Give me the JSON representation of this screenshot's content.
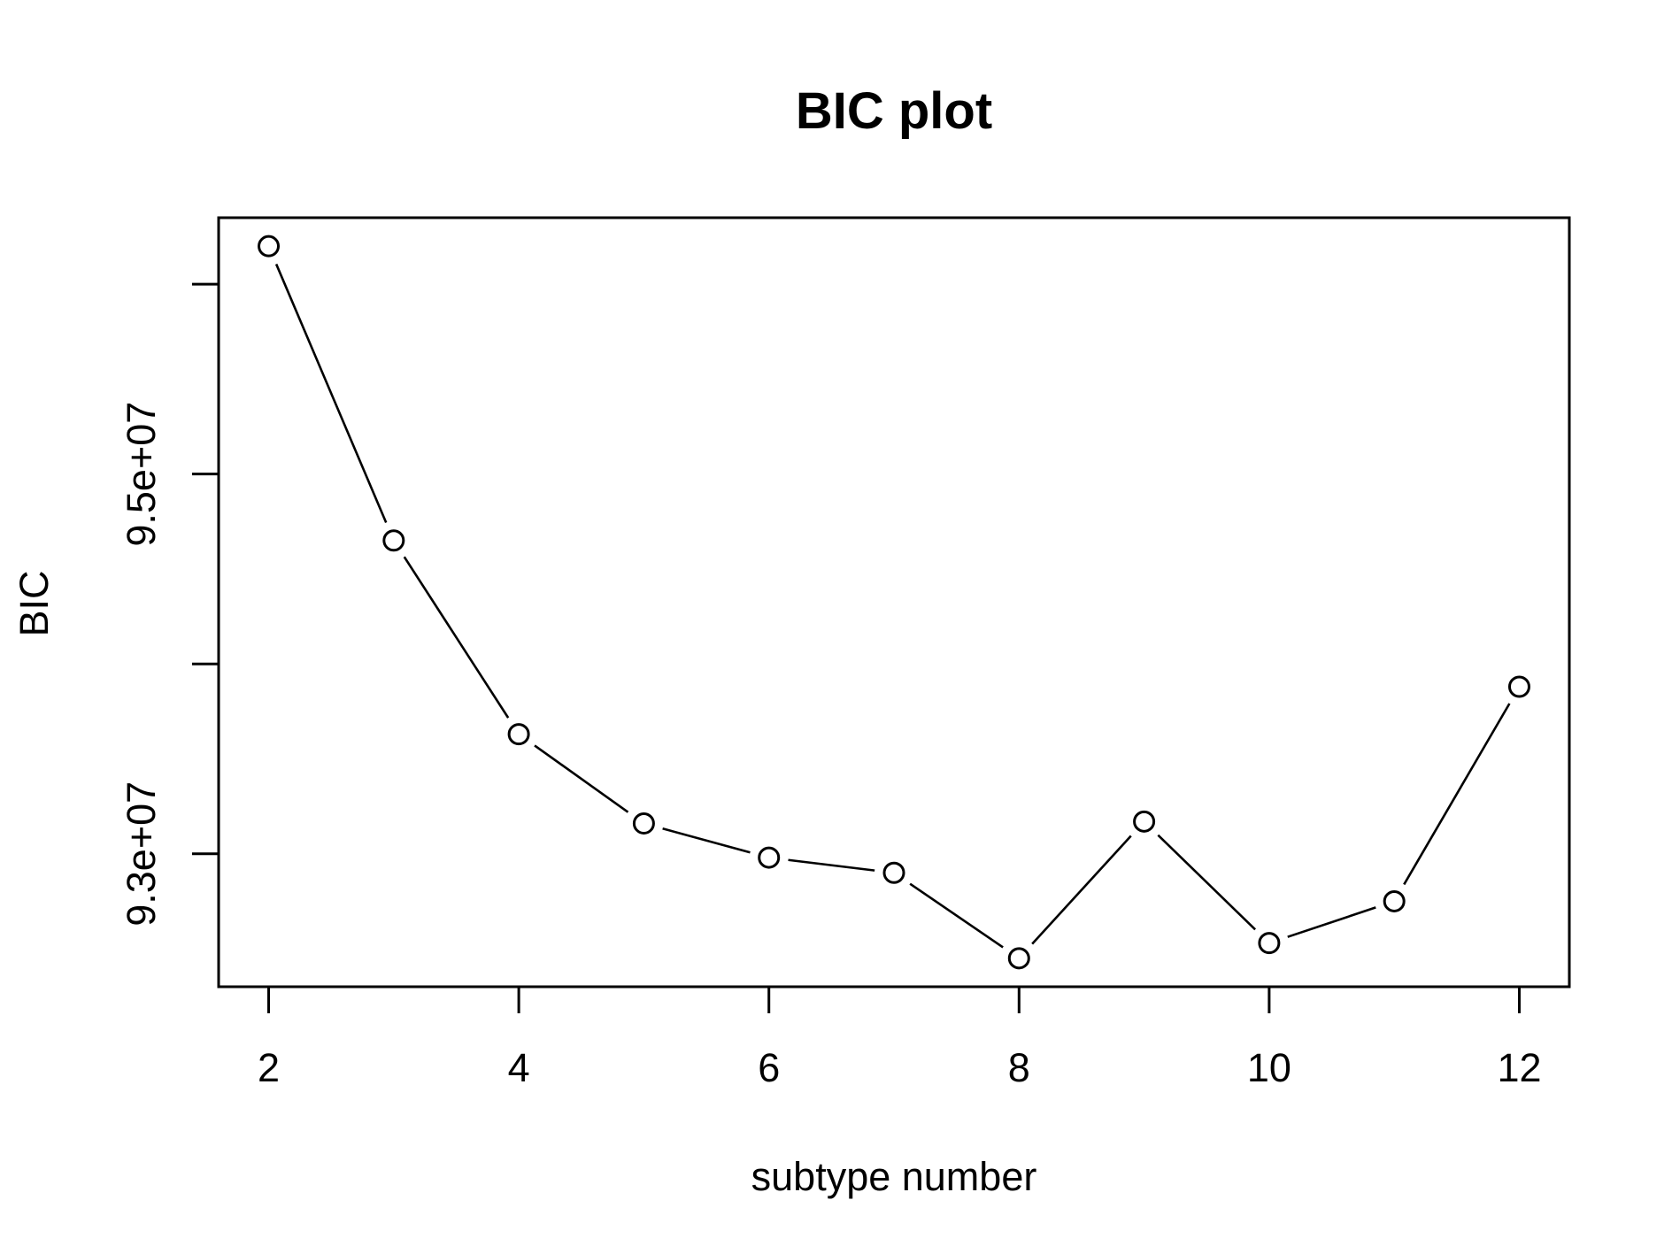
{
  "chart_data": {
    "type": "line",
    "title": "BIC plot",
    "xlabel": "subtype number",
    "ylabel": "BIC",
    "x": [
      2,
      3,
      4,
      5,
      6,
      7,
      8,
      9,
      10,
      11,
      12
    ],
    "values": [
      96200000,
      94650000,
      93630000,
      93160000,
      92980000,
      92900000,
      92450000,
      93170000,
      92530000,
      92750000,
      93880000
    ],
    "xlim": [
      1.6,
      12.4
    ],
    "ylim": [
      92300000,
      96350000
    ],
    "x_ticks": [
      2,
      4,
      6,
      8,
      10,
      12
    ],
    "x_tick_labels": [
      "2",
      "4",
      "6",
      "8",
      "10",
      "12"
    ],
    "y_ticks": [
      93000000,
      94000000,
      95000000,
      96000000
    ],
    "y_tick_labels": [
      "9.3e+07",
      "",
      "9.5e+07",
      ""
    ],
    "grid": false,
    "marker": "open-circle"
  }
}
